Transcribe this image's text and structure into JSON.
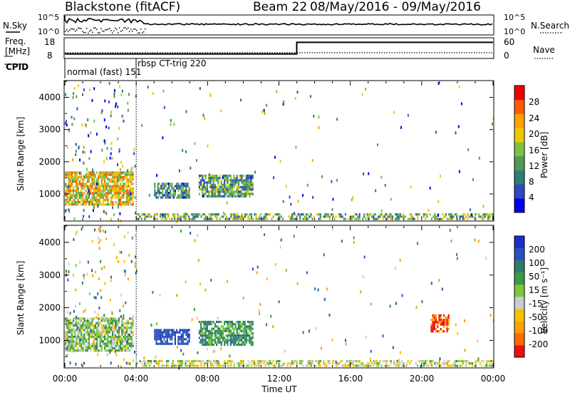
{
  "header": {
    "station": "Blackstone (fitACF)",
    "beam": "Beam 22",
    "date_range": "08/May/2016 - 09/May/2016"
  },
  "noise_panel": {
    "left_label": "N.Sky",
    "right_label": "N.Search",
    "ticks_left": [
      "10^5",
      "10^0"
    ],
    "ticks_right": [
      "10^5",
      "10^0"
    ]
  },
  "freq_panel": {
    "left_label_line1": "Freq.",
    "left_label_line2": "[MHz]",
    "right_label": "Nave",
    "ticks_left": [
      "18",
      "8"
    ],
    "ticks_right": [
      "60",
      "0"
    ]
  },
  "cpid_panel": {
    "label": "CPID",
    "modes": [
      "normal (fast) 151",
      "rbsp CT-trig 220"
    ]
  },
  "power_panel": {
    "ylabel": "Slant Range [km]",
    "colorbar_label": "Power [dB]",
    "colorbar_ticks": [
      "28",
      "24",
      "20",
      "16",
      "12",
      "8",
      "4"
    ],
    "colorbar_colors": [
      "#0000ee",
      "#2f48c4",
      "#2d7d78",
      "#4f9b57",
      "#7ec33e",
      "#f0c800",
      "#ffa000",
      "#ff5a00",
      "#ee0000"
    ]
  },
  "velocity_panel": {
    "ylabel": "Slant Range [km]",
    "colorbar_label": "Velocity [m s⁻¹]",
    "colorbar_ticks": [
      "200",
      "100",
      "50",
      "15",
      "-15",
      "-50",
      "-100",
      "-200"
    ],
    "colorbar_colors": [
      "#1a2ecc",
      "#2a52c0",
      "#2e7d6e",
      "#3a9b47",
      "#7ec83a",
      "#cccccc",
      "#f6c200",
      "#ffa000",
      "#ff6a00",
      "#ee1010"
    ]
  },
  "xaxis": {
    "label": "Time UT",
    "ticks": [
      "00:00",
      "04:00",
      "08:00",
      "12:00",
      "16:00",
      "20:00",
      "00:00"
    ]
  },
  "chart_data": {
    "type": "heatmap",
    "title": "Blackstone (fitACF)",
    "subtitle": "Beam 22 08/May/2016 - 09/May/2016",
    "x_range_hours": [
      0,
      24
    ],
    "y_range_km": [
      180,
      4500
    ],
    "y_ticks": [
      1000,
      2000,
      3000,
      4000
    ],
    "xlabel": "Time UT",
    "ylabel": "Slant Range [km]",
    "frequency_mhz": [
      {
        "x_hours": [
          0,
          13
        ],
        "value": 10
      },
      {
        "x_hours": [
          13,
          24
        ],
        "value": 16
      }
    ],
    "cpid_modes": [
      {
        "name": "normal (fast) 151",
        "start_hours": 0
      },
      {
        "name": "rbsp CT-trig 220",
        "start_hours": 4
      }
    ],
    "power_echo_regions": [
      {
        "x_hours": [
          0,
          3.8
        ],
        "range_km": [
          700,
          1700
        ],
        "power_db": 20
      },
      {
        "x_hours": [
          5,
          7
        ],
        "range_km": [
          900,
          1350
        ],
        "power_db": 10
      },
      {
        "x_hours": [
          7.5,
          10.5
        ],
        "range_km": [
          900,
          1600
        ],
        "power_db": 12
      },
      {
        "x_hours": [
          4,
          24
        ],
        "range_km": [
          200,
          400
        ],
        "power_db": 14
      }
    ],
    "velocity_echo_regions": [
      {
        "x_hours": [
          0,
          3.8
        ],
        "range_km": [
          700,
          1700
        ],
        "velocity_ms": 0
      },
      {
        "x_hours": [
          5,
          7
        ],
        "range_km": [
          900,
          1350
        ],
        "velocity_ms": 150
      },
      {
        "x_hours": [
          7.5,
          10.5
        ],
        "range_km": [
          900,
          1600
        ],
        "velocity_ms": 50
      },
      {
        "x_hours": [
          20.5,
          21.5
        ],
        "range_km": [
          1300,
          1800
        ],
        "velocity_ms": -200
      },
      {
        "x_hours": [
          4,
          24
        ],
        "range_km": [
          200,
          400
        ],
        "velocity_ms": -30
      }
    ]
  }
}
